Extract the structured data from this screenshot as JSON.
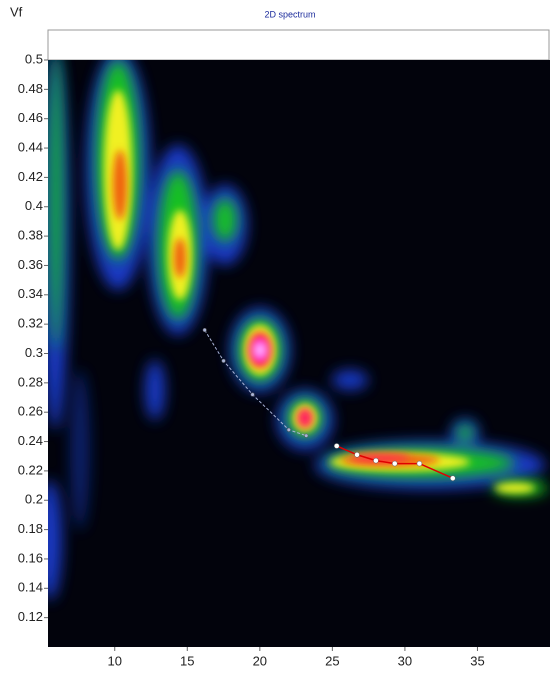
{
  "chart_data": {
    "type": "line",
    "title": "2D spectrum",
    "y_label": "Vf",
    "xlim": [
      5.4,
      40
    ],
    "ylim": [
      0.1,
      0.5
    ],
    "xticks": [
      10,
      15,
      20,
      25,
      30,
      35
    ],
    "yticks": [
      0.12,
      0.14,
      0.16,
      0.18,
      0.2,
      0.22,
      0.24,
      0.26,
      0.28,
      0.3,
      0.32,
      0.34,
      0.36,
      0.38,
      0.4,
      0.42,
      0.44,
      0.46,
      0.48,
      0.5
    ],
    "series": [
      {
        "color": "#e00000",
        "marker": "#ffffff",
        "dashed": false,
        "x": [
          25.3,
          26.7,
          28,
          29.3,
          31,
          33.3
        ],
        "values": [
          0.237,
          0.231,
          0.227,
          0.225,
          0.225,
          0.215
        ]
      },
      {
        "color": "#aab4d8",
        "marker": "#aab4d8",
        "dashed": true,
        "x": [
          16.2,
          17.5,
          19.5,
          22,
          23.2
        ],
        "values": [
          0.316,
          0.295,
          0.272,
          0.248,
          0.244
        ]
      }
    ]
  }
}
